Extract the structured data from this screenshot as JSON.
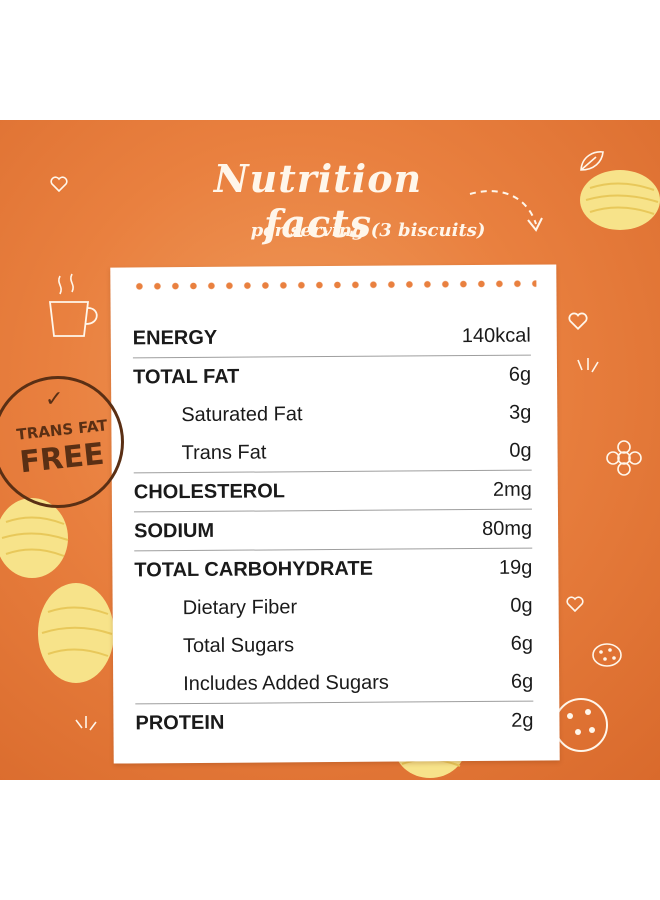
{
  "header": {
    "title": "Nutrition facts",
    "subtitle": "per serving (3 biscuits)"
  },
  "badge": {
    "line1": "TRANS FAT",
    "line2": "FREE"
  },
  "nutrition": [
    {
      "label": "ENERGY",
      "value": "140kcal",
      "level": "major"
    },
    {
      "label": "TOTAL FAT",
      "value": "6g",
      "level": "major"
    },
    {
      "label": "Saturated Fat",
      "value": "3g",
      "level": "minor"
    },
    {
      "label": "Trans Fat",
      "value": "0g",
      "level": "minor"
    },
    {
      "label": "CHOLESTEROL",
      "value": "2mg",
      "level": "major"
    },
    {
      "label": "SODIUM",
      "value": "80mg",
      "level": "major"
    },
    {
      "label": "TOTAL CARBOHYDRATE",
      "value": "19g",
      "level": "major"
    },
    {
      "label": "Dietary Fiber",
      "value": "0g",
      "level": "minor"
    },
    {
      "label": "Total Sugars",
      "value": "6g",
      "level": "minor"
    },
    {
      "label": "Includes Added Sugars",
      "value": "6g",
      "level": "minor"
    },
    {
      "label": "PROTEIN",
      "value": "2g",
      "level": "major"
    }
  ],
  "colors": {
    "background": "#e9803f",
    "card": "#ffffff",
    "badge": "#5a2f14",
    "butter": "#f7e38a"
  },
  "icons": [
    "heart-icon",
    "leaf-icon",
    "coffee-cup-icon",
    "arrow-icon",
    "flower-icon",
    "cookie-icon",
    "butter-curl-icon"
  ]
}
